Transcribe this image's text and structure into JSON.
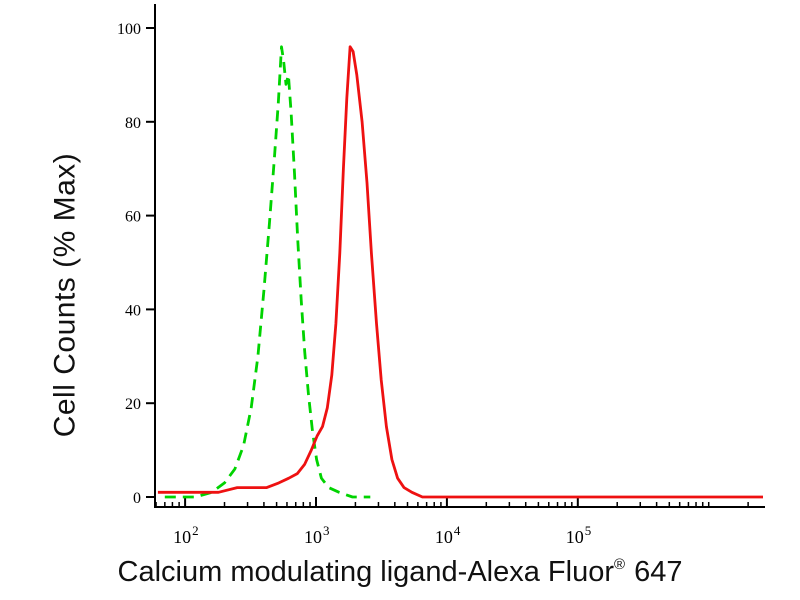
{
  "chart_data": {
    "type": "line",
    "title": "",
    "ylabel": "Cell Counts (% Max)",
    "xlabel": {
      "main": "Calcium modulating ligand-Alexa Fluor",
      "registered": "®",
      "suffix": "647"
    },
    "x_scale": "log",
    "x_range_log10": [
      1.77,
      6.43
    ],
    "x_major_tick_exponents": [
      2,
      3,
      4,
      5
    ],
    "x_tick_base": "10",
    "yticks": [
      0,
      20,
      40,
      60,
      80,
      100
    ],
    "ylim": [
      0,
      100
    ],
    "grid": false,
    "legend": "none",
    "axis_color": "#000000",
    "series": [
      {
        "name": "green-dashed",
        "color": "#00d300",
        "style": "dashed",
        "points": [
          [
            70,
            0
          ],
          [
            120,
            0
          ],
          [
            160,
            1
          ],
          [
            200,
            3
          ],
          [
            240,
            6
          ],
          [
            280,
            11
          ],
          [
            320,
            19
          ],
          [
            360,
            30
          ],
          [
            400,
            44
          ],
          [
            440,
            58
          ],
          [
            480,
            72
          ],
          [
            515,
            84
          ],
          [
            545,
            96
          ],
          [
            565,
            93
          ],
          [
            590,
            88
          ],
          [
            615,
            90
          ],
          [
            645,
            82
          ],
          [
            685,
            69
          ],
          [
            725,
            55
          ],
          [
            770,
            42
          ],
          [
            820,
            31
          ],
          [
            875,
            22
          ],
          [
            940,
            14
          ],
          [
            1010,
            8
          ],
          [
            1100,
            4
          ],
          [
            1250,
            2
          ],
          [
            1500,
            1
          ],
          [
            1900,
            0
          ],
          [
            2600,
            0
          ]
        ]
      },
      {
        "name": "red-solid",
        "color": "#ee1111",
        "style": "solid",
        "points": [
          [
            62,
            1
          ],
          [
            90,
            1
          ],
          [
            130,
            1
          ],
          [
            180,
            1
          ],
          [
            250,
            2
          ],
          [
            330,
            2
          ],
          [
            420,
            2
          ],
          [
            520,
            3
          ],
          [
            620,
            4
          ],
          [
            720,
            5
          ],
          [
            820,
            7
          ],
          [
            920,
            10
          ],
          [
            1020,
            13
          ],
          [
            1120,
            15
          ],
          [
            1220,
            19
          ],
          [
            1320,
            26
          ],
          [
            1420,
            37
          ],
          [
            1520,
            52
          ],
          [
            1620,
            70
          ],
          [
            1720,
            85
          ],
          [
            1820,
            96
          ],
          [
            1920,
            95
          ],
          [
            2050,
            90
          ],
          [
            2250,
            80
          ],
          [
            2450,
            67
          ],
          [
            2650,
            52
          ],
          [
            2900,
            37
          ],
          [
            3150,
            25
          ],
          [
            3450,
            15
          ],
          [
            3800,
            8
          ],
          [
            4200,
            4
          ],
          [
            4700,
            2
          ],
          [
            5400,
            1
          ],
          [
            6500,
            0
          ],
          [
            9000,
            0
          ],
          [
            30000,
            0
          ],
          [
            300000,
            0
          ],
          [
            2600000,
            0
          ]
        ]
      }
    ]
  }
}
